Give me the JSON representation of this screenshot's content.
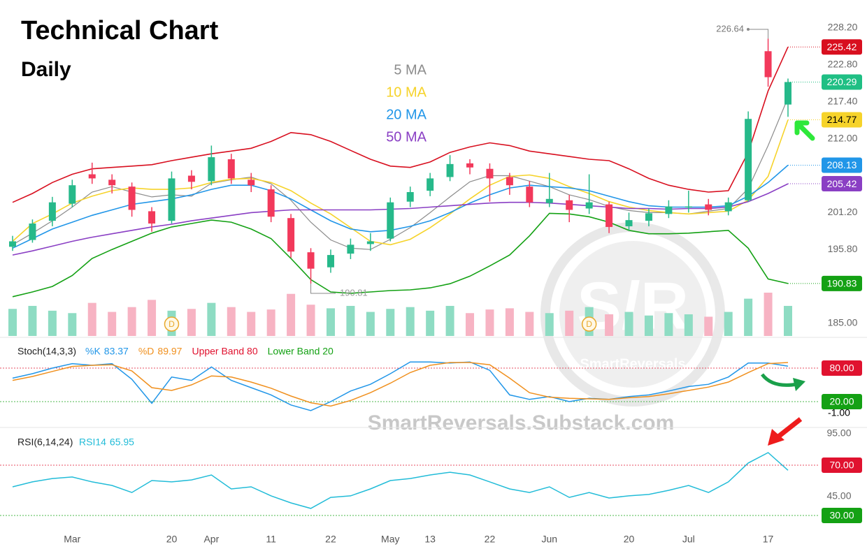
{
  "chart_data": [
    {
      "type": "candlestick",
      "title": "Technical Chart",
      "subtitle": "Daily",
      "categories": [
        null,
        null,
        null,
        "Mar",
        null,
        null,
        null,
        null,
        "20",
        null,
        "Apr",
        null,
        null,
        "11",
        null,
        null,
        "22",
        null,
        null,
        "May",
        null,
        "13",
        null,
        null,
        "22",
        null,
        null,
        "Jun",
        null,
        null,
        null,
        "20",
        null,
        null,
        "Jul",
        null,
        null,
        null,
        "17",
        null
      ],
      "candles": [
        {
          "o": 196.2,
          "h": 197.8,
          "l": 195.6,
          "c": 197.0
        },
        {
          "o": 197.2,
          "h": 200.2,
          "l": 196.8,
          "c": 199.6
        },
        {
          "o": 200.0,
          "h": 203.5,
          "l": 199.2,
          "c": 202.7
        },
        {
          "o": 202.5,
          "h": 206.0,
          "l": 202.0,
          "c": 205.2
        },
        {
          "o": 206.8,
          "h": 208.5,
          "l": 205.4,
          "c": 206.2
        },
        {
          "o": 206.0,
          "h": 206.8,
          "l": 204.0,
          "c": 205.2
        },
        {
          "o": 205.0,
          "h": 205.6,
          "l": 200.6,
          "c": 201.6
        },
        {
          "o": 201.4,
          "h": 202.0,
          "l": 198.4,
          "c": 199.6
        },
        {
          "o": 200.0,
          "h": 207.2,
          "l": 199.6,
          "c": 206.2
        },
        {
          "o": 206.6,
          "h": 207.4,
          "l": 204.6,
          "c": 205.7
        },
        {
          "o": 205.8,
          "h": 211.0,
          "l": 205.2,
          "c": 209.3
        },
        {
          "o": 209.0,
          "h": 209.8,
          "l": 205.4,
          "c": 206.2
        },
        {
          "o": 206.0,
          "h": 207.0,
          "l": 204.2,
          "c": 205.2
        },
        {
          "o": 204.6,
          "h": 205.2,
          "l": 199.8,
          "c": 200.6
        },
        {
          "o": 200.4,
          "h": 201.0,
          "l": 194.6,
          "c": 195.5
        },
        {
          "o": 195.4,
          "h": 196.0,
          "l": 190.81,
          "c": 193.0
        },
        {
          "o": 193.2,
          "h": 195.8,
          "l": 192.4,
          "c": 195.0
        },
        {
          "o": 195.2,
          "h": 197.4,
          "l": 194.4,
          "c": 196.5
        },
        {
          "o": 196.6,
          "h": 198.2,
          "l": 195.6,
          "c": 197.0
        },
        {
          "o": 197.4,
          "h": 203.4,
          "l": 197.0,
          "c": 202.7
        },
        {
          "o": 202.8,
          "h": 205.0,
          "l": 202.0,
          "c": 204.2
        },
        {
          "o": 204.4,
          "h": 207.0,
          "l": 203.6,
          "c": 206.2
        },
        {
          "o": 206.4,
          "h": 209.6,
          "l": 205.8,
          "c": 208.3
        },
        {
          "o": 208.4,
          "h": 209.0,
          "l": 206.8,
          "c": 207.8
        },
        {
          "o": 207.6,
          "h": 208.4,
          "l": 202.8,
          "c": 206.2
        },
        {
          "o": 206.4,
          "h": 207.0,
          "l": 203.8,
          "c": 205.2
        },
        {
          "o": 205.0,
          "h": 205.8,
          "l": 202.0,
          "c": 202.7
        },
        {
          "o": 202.6,
          "h": 207.0,
          "l": 202.0,
          "c": 203.2
        },
        {
          "o": 203.0,
          "h": 203.8,
          "l": 199.8,
          "c": 201.6
        },
        {
          "o": 201.8,
          "h": 206.8,
          "l": 201.0,
          "c": 202.7
        },
        {
          "o": 202.4,
          "h": 202.8,
          "l": 198.2,
          "c": 199.1
        },
        {
          "o": 199.2,
          "h": 201.2,
          "l": 198.6,
          "c": 200.1
        },
        {
          "o": 200.0,
          "h": 201.8,
          "l": 199.2,
          "c": 201.1
        },
        {
          "o": 201.0,
          "h": 203.0,
          "l": 200.4,
          "c": 202.1
        },
        {
          "o": 202.0,
          "h": 204.4,
          "l": 201.2,
          "c": 202.1
        },
        {
          "o": 202.4,
          "h": 203.2,
          "l": 200.8,
          "c": 201.6
        },
        {
          "o": 201.4,
          "h": 203.4,
          "l": 200.8,
          "c": 202.7
        },
        {
          "o": 203.0,
          "h": 216.0,
          "l": 202.8,
          "c": 214.9
        },
        {
          "o": 224.8,
          "h": 226.64,
          "l": 219.6,
          "c": 221.0
        },
        {
          "o": 217.0,
          "h": 220.8,
          "l": 215.2,
          "c": 220.29
        }
      ],
      "up_color": "#26b98a",
      "down_color": "#f2395b",
      "close_label_color": "#1fbf84",
      "volume": [
        45,
        50,
        42,
        38,
        55,
        40,
        48,
        60,
        42,
        45,
        55,
        48,
        40,
        44,
        70,
        52,
        46,
        50,
        40,
        45,
        48,
        42,
        50,
        38,
        44,
        46,
        40,
        38,
        42,
        48,
        36,
        40,
        34,
        38,
        36,
        32,
        40,
        62,
        72,
        50
      ],
      "volume_up_color": "#8edcc3",
      "volume_down_color": "#f7b3c3",
      "dividend_markers": [
        "D",
        "D"
      ],
      "series": [
        {
          "name": "5 MA",
          "color": "#8c8c8c",
          "values": [
            196.5,
            198.2,
            200.0,
            202.0,
            204.2,
            205.0,
            204.2,
            203.5,
            203.8,
            203.6,
            205.5,
            206.0,
            206.4,
            205.4,
            203.0,
            199.8,
            197.2,
            196.0,
            195.8,
            197.3,
            199.0,
            201.2,
            203.5,
            205.7,
            206.6,
            206.6,
            205.8,
            205.0,
            203.8,
            203.1,
            202.1,
            201.5,
            201.2,
            201.2,
            201.0,
            201.4,
            201.8,
            204.7,
            211.0,
            218.0
          ]
        },
        {
          "name": "10 MA",
          "color": "#f6d32a",
          "price_label": true,
          "values": [
            197.0,
            199.6,
            201.0,
            202.6,
            203.6,
            204.4,
            204.8,
            204.6,
            204.6,
            204.8,
            205.6,
            206.1,
            206.2,
            205.6,
            204.4,
            202.6,
            201.0,
            199.0,
            197.0,
            196.5,
            197.3,
            199.0,
            201.0,
            203.2,
            205.2,
            206.5,
            206.7,
            206.2,
            205.0,
            204.0,
            202.8,
            202.0,
            201.5,
            201.2,
            201.0,
            201.2,
            201.4,
            203.0,
            206.5,
            214.77
          ]
        },
        {
          "name": "20 MA",
          "color": "#2196e8",
          "price_label": true,
          "values": [
            196.0,
            197.4,
            198.8,
            199.8,
            200.8,
            201.6,
            202.4,
            202.8,
            203.2,
            203.8,
            204.6,
            205.2,
            205.2,
            204.4,
            203.2,
            201.6,
            200.0,
            198.8,
            198.4,
            198.6,
            199.2,
            200.0,
            201.2,
            202.6,
            203.8,
            204.8,
            205.2,
            205.0,
            204.8,
            204.4,
            203.6,
            202.8,
            202.2,
            202.0,
            202.0,
            202.0,
            202.2,
            203.6,
            205.6,
            208.13
          ]
        },
        {
          "name": "50 MA",
          "color": "#8a3fc4",
          "price_label": true,
          "values": [
            195.0,
            195.6,
            196.3,
            197.0,
            197.6,
            198.1,
            198.6,
            199.1,
            199.5,
            200.0,
            200.4,
            200.8,
            201.2,
            201.4,
            201.6,
            201.6,
            201.6,
            201.6,
            201.6,
            201.7,
            201.8,
            202.0,
            202.2,
            202.4,
            202.6,
            202.7,
            202.7,
            202.6,
            202.4,
            202.2,
            202.0,
            201.8,
            201.8,
            201.7,
            201.8,
            201.8,
            202.0,
            202.8,
            204.0,
            205.42
          ]
        },
        {
          "color": "#d80f1f",
          "price_label": true,
          "values": [
            202.7,
            204.0,
            205.6,
            206.8,
            207.6,
            207.8,
            208.0,
            208.2,
            208.8,
            209.3,
            209.8,
            210.2,
            210.6,
            211.6,
            212.9,
            212.6,
            211.6,
            210.3,
            209.0,
            208.0,
            207.8,
            208.6,
            210.0,
            210.8,
            211.4,
            211.0,
            210.2,
            209.8,
            209.4,
            209.0,
            208.8,
            207.6,
            206.2,
            205.2,
            204.6,
            204.2,
            204.4,
            210.0,
            219.0,
            225.42
          ]
        },
        {
          "color": "#14a114",
          "price_label": true,
          "values": [
            188.9,
            189.6,
            190.4,
            192.0,
            194.5,
            195.8,
            197.0,
            198.2,
            199.1,
            199.6,
            200.1,
            199.8,
            198.8,
            197.4,
            194.5,
            191.4,
            189.6,
            189.4,
            189.6,
            189.8,
            189.9,
            190.2,
            190.8,
            191.9,
            193.4,
            195.0,
            197.8,
            201.1,
            201.0,
            200.6,
            199.8,
            198.6,
            198.1,
            198.1,
            198.2,
            198.4,
            198.6,
            196.0,
            191.5,
            190.83
          ]
        }
      ],
      "ylim": [
        185,
        228.2
      ],
      "yticks": [
        {
          "value": 228.2,
          "label": "228.20"
        },
        {
          "value": 222.8,
          "label": "222.80"
        },
        {
          "value": 217.4,
          "label": "217.40"
        },
        {
          "value": 212,
          "label": "212.00"
        },
        {
          "value": 201.2,
          "label": "201.20"
        },
        {
          "value": 195.8,
          "label": "195.80"
        },
        {
          "value": 185,
          "label": "185.00"
        }
      ],
      "grid": false
    },
    {
      "type": "line",
      "title": "Stoch(14,3,3)",
      "series": [
        {
          "name": "%K",
          "color": "#2196e8",
          "values": [
            62,
            70,
            80,
            88,
            85,
            88,
            60,
            17,
            64,
            58,
            82,
            58,
            45,
            32,
            14,
            4,
            20,
            39,
            51,
            70,
            91,
            91,
            89,
            91,
            76,
            32,
            24,
            29,
            20,
            26,
            24,
            29,
            32,
            39,
            47,
            51,
            64,
            89,
            89,
            83.37
          ]
        },
        {
          "name": "%D",
          "color": "#f0901e",
          "values": [
            58,
            65,
            74,
            83,
            85,
            86,
            75,
            45,
            40,
            50,
            66,
            64,
            55,
            44,
            30,
            18,
            12,
            22,
            36,
            53,
            72,
            85,
            90,
            90,
            86,
            62,
            36,
            28,
            26,
            25,
            24,
            27,
            29,
            34,
            40,
            46,
            55,
            72,
            88,
            89.97
          ]
        }
      ],
      "bands": [
        {
          "name": "Upper Band 80",
          "value": 80,
          "label": "80.00",
          "color": "#e0122f"
        },
        {
          "name": "Lower Band 20",
          "value": 20,
          "label": "20.00",
          "color": "#14a114"
        }
      ],
      "ylim": [
        -5,
        110
      ],
      "yticks": [
        {
          "value": -1,
          "label": "-1.00"
        }
      ],
      "grid": false
    },
    {
      "type": "line",
      "title": "RSI(6,14,24)",
      "series": [
        {
          "name": "RSI14",
          "color": "#22bcd8",
          "values": [
            52.8,
            56.7,
            59.4,
            60.6,
            56.7,
            53.9,
            48.3,
            57.8,
            56.7,
            58.3,
            62.2,
            51.1,
            52.8,
            45.6,
            40,
            35.6,
            44.4,
            45.6,
            51.1,
            57.8,
            59.4,
            62.2,
            64.4,
            62.2,
            56.7,
            51.1,
            48.3,
            52.8,
            44.4,
            48.3,
            43.9,
            45.6,
            46.7,
            50,
            53.9,
            48.3,
            56.7,
            71.7,
            80,
            65.95
          ]
        }
      ],
      "bands": [
        {
          "value": 70,
          "label": "70.00",
          "color": "#e0122f"
        },
        {
          "value": 30,
          "label": "30.00",
          "color": "#14a114"
        }
      ],
      "ylim": [
        26,
        98
      ],
      "yticks": [
        {
          "value": 95,
          "label": "95.00"
        },
        {
          "value": 45,
          "label": "45.00"
        }
      ],
      "grid": false
    }
  ],
  "watermark": {
    "logo": "S/R",
    "brand": "SmartReversals",
    "url": "SmartReversals.Substack.com"
  }
}
